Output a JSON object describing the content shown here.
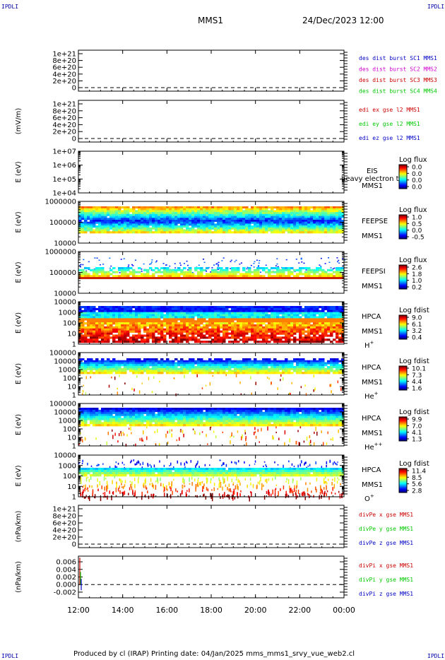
{
  "corners": {
    "tl": "IPDLI",
    "tr": "IPDLI",
    "bl": "IPDLI",
    "br": "IPDLI"
  },
  "header": {
    "spacecraft": "MMS1",
    "datetime": "24/Dec/2023 12:00"
  },
  "footer": {
    "text": "Produced by cl (IRAP)   Printing date: 04/Jan/2025   mms_mms1_srvy_vue_web2.cl"
  },
  "colors": {
    "mms1": "#0000c8",
    "mms2": "#d000d0",
    "mms3": "#cc0000",
    "mms4": "#00c800",
    "red": "#cc0000",
    "green": "#00c800",
    "blue": "#0000c8"
  },
  "time_axis": {
    "ticks": [
      "12:00",
      "14:00",
      "16:00",
      "18:00",
      "20:00",
      "22:00",
      "00:00"
    ]
  },
  "chart_data": [
    {
      "type": "line",
      "id": "p1",
      "ylabel": "",
      "yticks": [
        "1e+21",
        "8e+20",
        "6e+20",
        "4e+20",
        "2e+20",
        "0"
      ],
      "ylim": [
        0,
        1e+21
      ],
      "legend": [
        {
          "text": "des dist burst SC1 MMS1",
          "color": "mms1"
        },
        {
          "text": "des dist burst SC2 MMS2",
          "color": "mms2"
        },
        {
          "text": "des dist burst SC3 MMS3",
          "color": "mms3"
        },
        {
          "text": "des dist burst SC4 MMS4",
          "color": "mms4"
        }
      ]
    },
    {
      "type": "line",
      "id": "p2",
      "ylabel": "(mV/m)",
      "yticks": [
        "1e+21",
        "8e+20",
        "6e+20",
        "4e+20",
        "2e+20",
        "0"
      ],
      "ylim": [
        0,
        1e+21
      ],
      "legend": [
        {
          "text": "edi ex gse l2 MMS1",
          "color": "red"
        },
        {
          "text": "edi ey gse l2 MMS1",
          "color": "green"
        },
        {
          "text": "edi ez gse l2 MMS1",
          "color": "blue"
        }
      ]
    },
    {
      "type": "heatmap",
      "id": "p3",
      "ylabel": "E (eV)",
      "yticks": [
        "1e+07",
        "1e+06",
        "1e+05",
        "1e+04"
      ],
      "labels": [
        "EIS",
        "MMS1"
      ],
      "overlay": "heavy electron to",
      "cb_title": "Log flux",
      "cb_ticks": [
        "0.0",
        "0.0",
        "0.0",
        "0.0"
      ]
    },
    {
      "type": "heatmap",
      "id": "p4",
      "ylabel": "E (eV)",
      "yticks": [
        "1000000",
        "100000",
        "10000"
      ],
      "labels": [
        "FEEPSE",
        "MMS1"
      ],
      "cb_title": "Log flux",
      "cb_ticks": [
        "1.0",
        "0.5",
        "0.0",
        "-0.5"
      ]
    },
    {
      "type": "heatmap",
      "id": "p5",
      "ylabel": "E (eV)",
      "yticks": [
        "1000000",
        "100000",
        "10000"
      ],
      "labels": [
        "FEEPSI",
        "MMS1"
      ],
      "cb_title": "Log flux",
      "cb_ticks": [
        "2.6",
        "1.8",
        "1.0",
        "0.2"
      ]
    },
    {
      "type": "heatmap",
      "id": "p6",
      "ylabel": "E (eV)",
      "yticks": [
        "10000",
        "1000",
        "100",
        "10",
        "1"
      ],
      "labels": [
        "HPCA",
        "MMS1"
      ],
      "ion": "H",
      "ion_sup": "+",
      "cb_title": "Log fdist",
      "cb_ticks": [
        "9.0",
        "6.1",
        "3.2",
        "0.4"
      ]
    },
    {
      "type": "heatmap",
      "id": "p7",
      "ylabel": "E (eV)",
      "yticks": [
        "100000",
        "10000",
        "1000",
        "100",
        "10",
        "1"
      ],
      "labels": [
        "HPCA",
        "MMS1"
      ],
      "ion": "He",
      "ion_sup": "+",
      "cb_title": "Log fdist",
      "cb_ticks": [
        "10.1",
        "7.3",
        "4.4",
        "1.6"
      ]
    },
    {
      "type": "heatmap",
      "id": "p8",
      "ylabel": "E (eV)",
      "yticks": [
        "100000",
        "10000",
        "1000",
        "100",
        "10",
        "1"
      ],
      "labels": [
        "HPCA",
        "MMS1"
      ],
      "ion": "He",
      "ion_sup": "++",
      "cb_title": "Log fdist",
      "cb_ticks": [
        "9.9",
        "7.0",
        "4.1",
        "1.3"
      ]
    },
    {
      "type": "heatmap",
      "id": "p9",
      "ylabel": "E (eV)",
      "yticks": [
        "10000",
        "1000",
        "100",
        "10",
        "1"
      ],
      "labels": [
        "HPCA",
        "MMS1"
      ],
      "ion": "O",
      "ion_sup": "+",
      "cb_title": "Log fdist",
      "cb_ticks": [
        "11.4",
        "8.5",
        "5.6",
        "2.8"
      ]
    },
    {
      "type": "line",
      "id": "p10",
      "ylabel": "(nPa/km)",
      "yticks": [
        "1e+21",
        "8e+20",
        "6e+20",
        "4e+20",
        "2e+20",
        "0"
      ],
      "ylim": [
        0,
        1e+21
      ],
      "legend": [
        {
          "text": "divPe x gse MMS1",
          "color": "red"
        },
        {
          "text": "divPe y gse MMS1",
          "color": "green"
        },
        {
          "text": "divPe z gse MMS1",
          "color": "blue"
        }
      ]
    },
    {
      "type": "line",
      "id": "p11",
      "ylabel": "(nPa/km)",
      "yticks": [
        "0.006",
        "0.004",
        "0.002",
        "0.000",
        "-0.002"
      ],
      "ylim": [
        -0.0035,
        0.0075
      ],
      "legend": [
        {
          "text": "divPi x gse MMS1",
          "color": "red"
        },
        {
          "text": "divPi y gse MMS1",
          "color": "green"
        },
        {
          "text": "divPi z gse MMS1",
          "color": "blue"
        }
      ]
    }
  ]
}
